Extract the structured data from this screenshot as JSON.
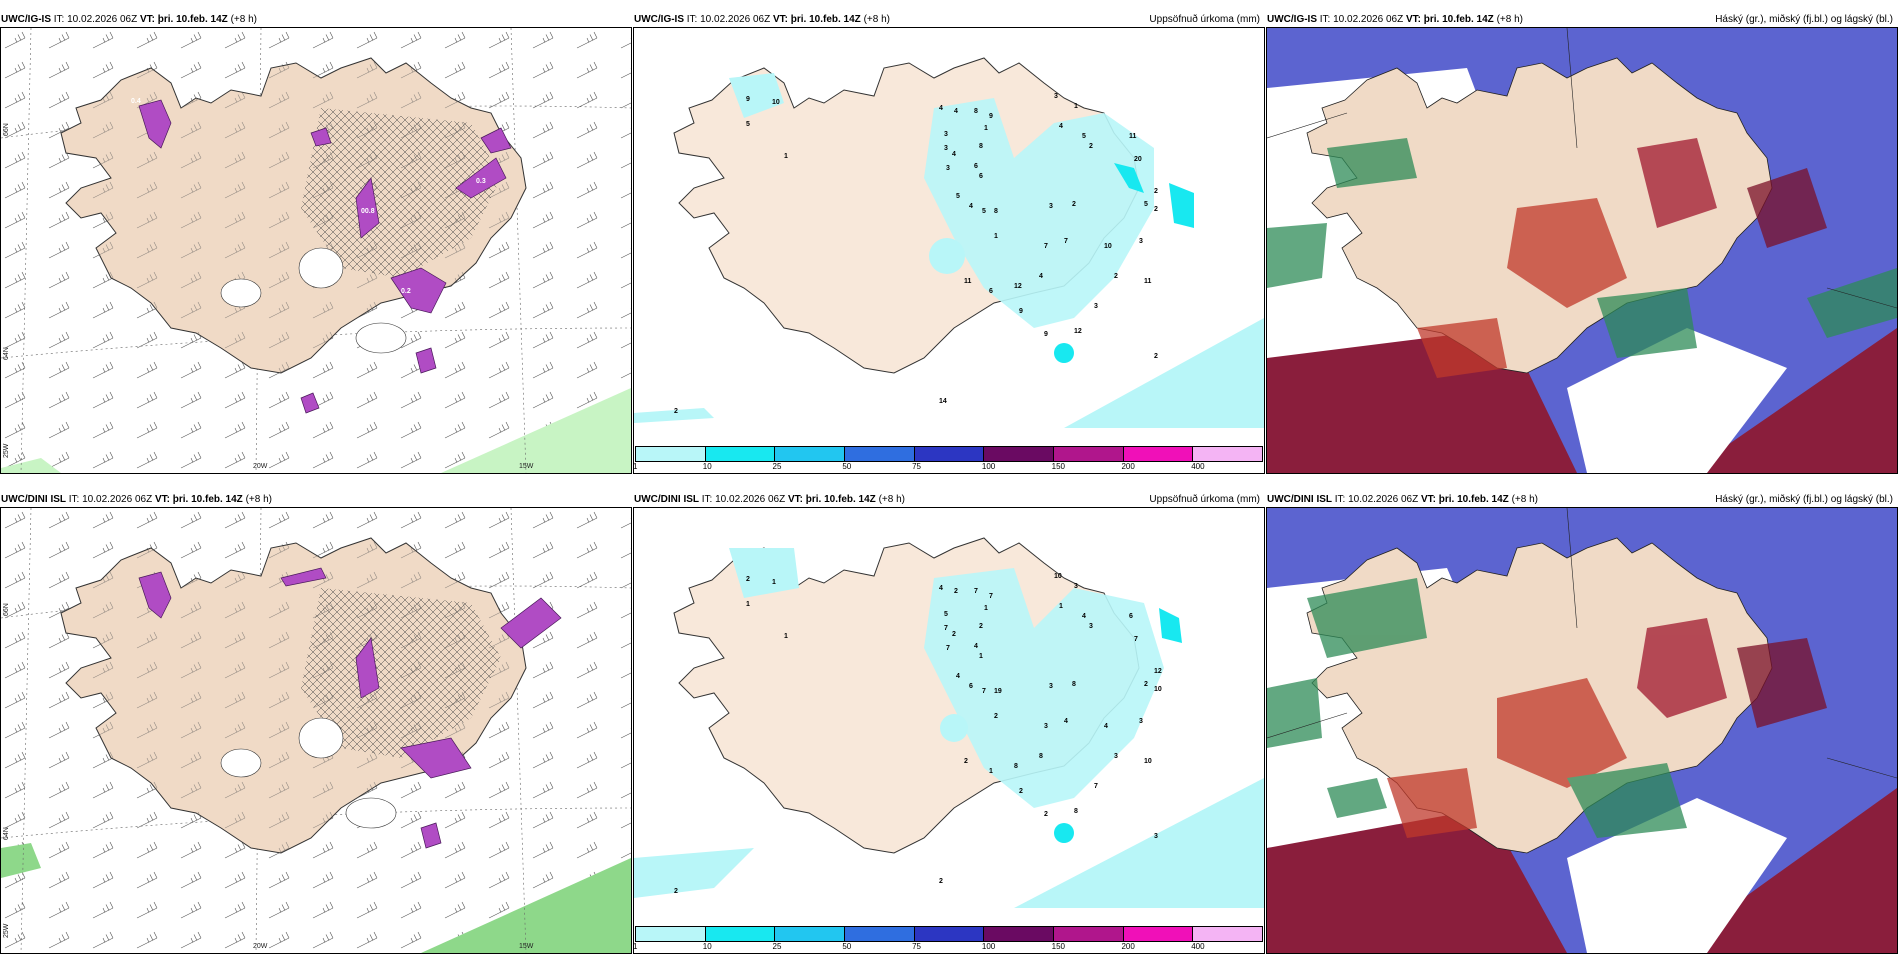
{
  "rows": [
    {
      "model": "UWC/IG-IS",
      "it_label": "IT:",
      "it_value": "10.02.2026 06Z",
      "vt_label": "VT:",
      "vt_value": "þri. 10.feb. 14Z",
      "lead": "(+8 h)"
    },
    {
      "model": "UWC/DINI ISL",
      "it_label": "IT:",
      "it_value": "10.02.2026 06Z",
      "vt_label": "VT:",
      "vt_value": "þri. 10.feb. 14Z",
      "lead": "(+8 h)"
    }
  ],
  "products": {
    "precip": "Uppsöfnuð úrkoma (mm)",
    "clouds": "Háský (gr.), miðský (fj.bl.) og lágský (bl.)"
  },
  "grid_labels": {
    "lat66": "66N",
    "lat64": "64N",
    "lon20": "20W",
    "lon15": "15W",
    "lon25": "25W"
  },
  "legend": {
    "ticks": [
      "1",
      "10",
      "25",
      "50",
      "75",
      "100",
      "150",
      "200",
      "400"
    ],
    "colors": [
      "#b8f6f8",
      "#18e8f0",
      "#22c6f0",
      "#2f6ee0",
      "#2c36c2",
      "#6a0a62",
      "#b0168c",
      "#f010b8",
      "#f4b4f4"
    ]
  },
  "precip_values_top": [
    "9",
    "10",
    "5",
    "1",
    "4",
    "4",
    "8",
    "9",
    "1",
    "3",
    "3",
    "4",
    "8",
    "3",
    "6",
    "6",
    "5",
    "4",
    "5",
    "8",
    "3",
    "1",
    "4",
    "5",
    "2",
    "11",
    "20",
    "3",
    "2",
    "5",
    "1",
    "11",
    "12",
    "7",
    "7",
    "3",
    "2",
    "3",
    "4",
    "10",
    "2",
    "2",
    "9",
    "9",
    "6",
    "11",
    "12",
    "2",
    "14",
    "2"
  ],
  "precip_values_bottom": [
    "2",
    "1",
    "1",
    "1",
    "4",
    "2",
    "7",
    "7",
    "1",
    "5",
    "7",
    "2",
    "2",
    "7",
    "4",
    "1",
    "4",
    "6",
    "7",
    "19",
    "10",
    "3",
    "1",
    "4",
    "3",
    "6",
    "7",
    "3",
    "8",
    "2",
    "2",
    "10",
    "8",
    "3",
    "4",
    "3",
    "3",
    "7",
    "8",
    "4",
    "12",
    "10",
    "2",
    "2",
    "1",
    "2",
    "8",
    "3",
    "2",
    "2"
  ]
}
